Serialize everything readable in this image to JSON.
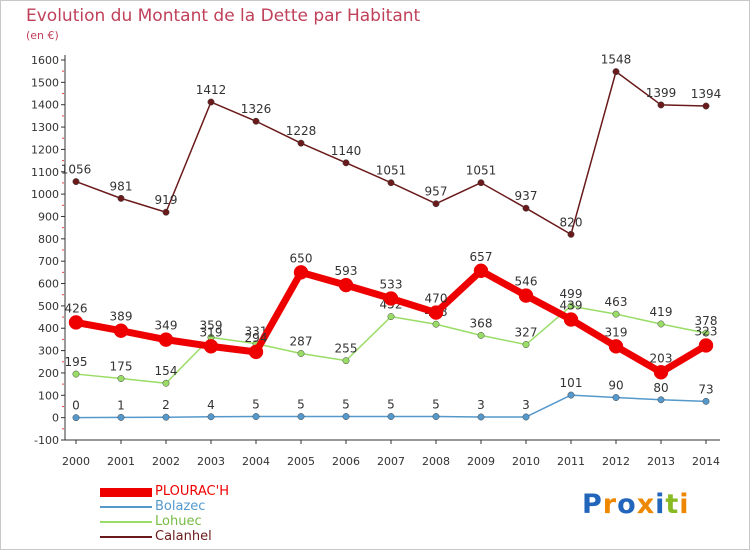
{
  "title": "Evolution du Montant de la Dette par Habitant",
  "unit": "(en €)",
  "chart_data": {
    "type": "line",
    "title": "Evolution du Montant de la Dette par Habitant",
    "ylabel": "(en €)",
    "xlabel": "",
    "ylim": [
      -100,
      1600
    ],
    "yticks": [
      "-100",
      "0",
      "100",
      "200",
      "300",
      "400",
      "500",
      "600",
      "700",
      "800",
      "900",
      "1000",
      "1100",
      "1200",
      "1300",
      "1400",
      "1500",
      "1600"
    ],
    "x": [
      "2000",
      "2001",
      "2002",
      "2003",
      "2004",
      "2005",
      "2006",
      "2007",
      "2008",
      "2009",
      "2010",
      "2011",
      "2012",
      "2013",
      "2014"
    ],
    "grid": false,
    "legend_position": "bottom-left",
    "series": [
      {
        "name": "Calanhel",
        "color": "#6a1a1a",
        "values": [
          1056,
          981,
          919,
          1412,
          1326,
          1228,
          1140,
          1051,
          957,
          1051,
          937,
          820,
          1548,
          1399,
          1394
        ]
      },
      {
        "name": "Lohuec",
        "color": "#99dd66",
        "values": [
          195,
          175,
          154,
          359,
          331,
          287,
          255,
          452,
          418,
          368,
          327,
          499,
          463,
          419,
          378
        ]
      },
      {
        "name": "Bolazec",
        "color": "#5599cc",
        "values": [
          0,
          1,
          2,
          4,
          5,
          5,
          5,
          5,
          5,
          3,
          3,
          101,
          90,
          80,
          73
        ]
      },
      {
        "name": "PLOURAC'H",
        "color": "#ee0000",
        "values": [
          426,
          389,
          349,
          319,
          294,
          650,
          593,
          533,
          470,
          657,
          546,
          439,
          319,
          203,
          323
        ]
      }
    ]
  },
  "legend": [
    {
      "name": "PLOURAC'H",
      "color": "#ee0000"
    },
    {
      "name": "Bolazec",
      "color": "#5599cc"
    },
    {
      "name": "Lohuec",
      "color": "#99dd66"
    },
    {
      "name": "Calanhel",
      "color": "#6a1a1a"
    }
  ],
  "logo": {
    "letters": [
      "P",
      "r",
      "o",
      "x",
      "i",
      "t",
      "i"
    ],
    "colors": [
      "#2266bb",
      "#ee8800",
      "#2266bb",
      "#ee8800",
      "#2266bb",
      "#88bb22",
      "#ee8800"
    ]
  }
}
